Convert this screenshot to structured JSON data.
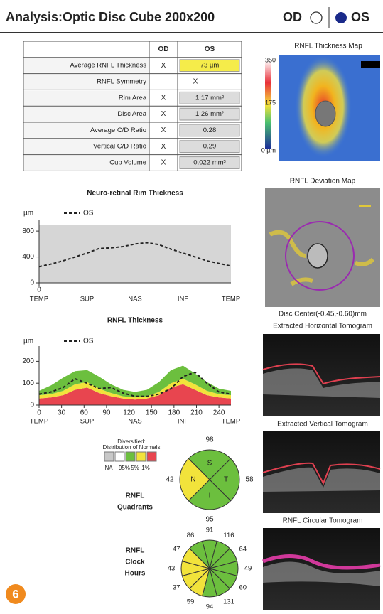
{
  "header": {
    "title": "Analysis:Optic Disc Cube 200x200",
    "od": "OD",
    "os": "OS"
  },
  "table": {
    "columns": [
      "OD",
      "OS"
    ],
    "rows": [
      {
        "label": "Average RNFL Thickness",
        "od": "X",
        "os": "73 µm",
        "os_color": "#f5ec4a"
      },
      {
        "label": "RNFL Symmetry",
        "value": "X"
      },
      {
        "label": "Rim Area",
        "od": "X",
        "os": "1.17 mm²"
      },
      {
        "label": "Disc Area",
        "od": "X",
        "os": "1.26 mm²"
      },
      {
        "label": "Average C/D Ratio",
        "od": "X",
        "os": "0.28"
      },
      {
        "label": "Vertical C/D Ratio",
        "od": "X",
        "os": "0.29"
      },
      {
        "label": "Cup Volume",
        "od": "X",
        "os": "0.022 mm³"
      }
    ]
  },
  "thickness_map": {
    "title": "RNFL Thickness Map",
    "scale_labels": [
      "350",
      "175",
      "0 µm"
    ]
  },
  "deviation_map": {
    "title": "RNFL Deviation Map",
    "caption": "Disc Center(-0.45,-0.60)mm"
  },
  "tomograms": [
    "Extracted Horizontal Tomogram",
    "Extracted Vertical Tomogram",
    "RNFL Circular Tomogram"
  ],
  "chart_data": [
    {
      "type": "line",
      "title": "Neuro-retinal Rim Thickness",
      "y_label": "µm",
      "background": "#d6d6d6",
      "xlim": [
        0,
        256
      ],
      "ylim": [
        0,
        900
      ],
      "yticks": [
        0,
        400,
        800
      ],
      "xticks": [
        0
      ],
      "region_labels": [
        {
          "value": 0,
          "label": "TEMP"
        },
        {
          "value": 64,
          "label": "SUP"
        },
        {
          "value": 128,
          "label": "NAS"
        },
        {
          "value": 192,
          "label": "INF"
        },
        {
          "value": 256,
          "label": "TEMP"
        }
      ],
      "x": [
        0,
        16,
        32,
        48,
        64,
        80,
        96,
        112,
        128,
        144,
        160,
        176,
        192,
        208,
        224,
        240,
        256
      ],
      "series": [
        {
          "name": "OS",
          "color": "#222222",
          "values": [
            250,
            290,
            340,
            400,
            460,
            530,
            540,
            560,
            600,
            620,
            590,
            520,
            460,
            400,
            340,
            300,
            260
          ]
        }
      ]
    },
    {
      "type": "line",
      "title": "RNFL Thickness",
      "y_label": "µm",
      "xlim": [
        0,
        256
      ],
      "ylim": [
        0,
        250
      ],
      "yticks": [
        0,
        100,
        200
      ],
      "xticks": [
        0,
        30,
        60,
        90,
        120,
        150,
        180,
        210,
        240
      ],
      "region_labels": [
        {
          "value": 0,
          "label": "TEMP"
        },
        {
          "value": 64,
          "label": "SUP"
        },
        {
          "value": 128,
          "label": "NAS"
        },
        {
          "value": 192,
          "label": "INF"
        },
        {
          "value": 256,
          "label": "TEMP"
        }
      ],
      "x": [
        0,
        16,
        32,
        48,
        64,
        80,
        96,
        112,
        128,
        144,
        160,
        176,
        192,
        208,
        224,
        240,
        256
      ],
      "bands": [
        {
          "color": "#e8454f",
          "values": [
            30,
            35,
            45,
            70,
            80,
            55,
            40,
            30,
            25,
            30,
            45,
            80,
            95,
            70,
            45,
            35,
            30
          ]
        },
        {
          "color": "#f2e33b",
          "values": [
            15,
            15,
            20,
            25,
            25,
            20,
            15,
            10,
            10,
            10,
            15,
            20,
            25,
            25,
            20,
            15,
            15
          ]
        },
        {
          "color": "#6cbf3e",
          "values": [
            20,
            40,
            60,
            60,
            55,
            55,
            40,
            30,
            25,
            30,
            45,
            60,
            60,
            50,
            40,
            25,
            20
          ]
        }
      ],
      "series": [
        {
          "name": "OS",
          "color": "#222222",
          "values": [
            50,
            60,
            80,
            120,
            100,
            75,
            80,
            55,
            40,
            40,
            50,
            75,
            130,
            150,
            100,
            60,
            50
          ]
        }
      ]
    }
  ],
  "distribution_legend": {
    "title": [
      "Diversified:",
      "Distribution of Normals"
    ],
    "colors": [
      "#c8c8c8",
      "#ffffff",
      "#6cbf3e",
      "#f2e33b",
      "#e8454f"
    ],
    "labels": [
      "NA",
      "95%",
      "5%",
      "1%"
    ]
  },
  "quadrants": {
    "title": [
      "RNFL",
      "Quadrants"
    ],
    "labels": [
      "S",
      "T",
      "I",
      "N"
    ],
    "values": [
      98,
      58,
      95,
      42
    ],
    "colors": [
      "#6cbf3e",
      "#6cbf3e",
      "#6cbf3e",
      "#f2e33b"
    ]
  },
  "clock_hours": {
    "title": [
      "RNFL",
      "Clock",
      "Hours"
    ],
    "values": [
      91,
      116,
      64,
      49,
      60,
      131,
      94,
      59,
      37,
      43,
      47,
      86
    ],
    "colors": [
      "#6cbf3e",
      "#6cbf3e",
      "#6cbf3e",
      "#6cbf3e",
      "#6cbf3e",
      "#6cbf3e",
      "#6cbf3e",
      "#f2e33b",
      "#f2e33b",
      "#f2e33b",
      "#f2e33b",
      "#6cbf3e"
    ]
  },
  "badge": "6"
}
